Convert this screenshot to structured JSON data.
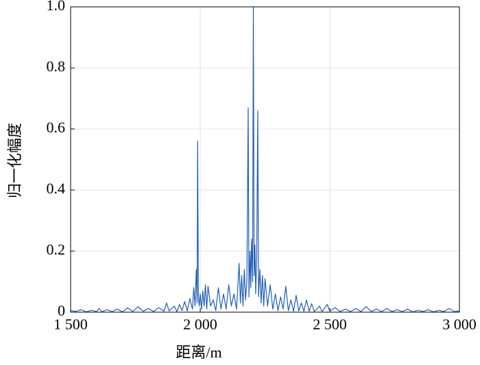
{
  "chart_data": {
    "type": "line",
    "xlabel": "距离/m",
    "ylabel": "归一化幅度",
    "color": "#1f5cb5",
    "grid": true,
    "xlim": [
      1500,
      3000
    ],
    "xticks": [
      {
        "value": 1500,
        "label": "1 500"
      },
      {
        "value": 2000,
        "label": "2 000"
      },
      {
        "value": 2500,
        "label": "2 500"
      },
      {
        "value": 3000,
        "label": "3 000"
      }
    ],
    "ylim": [
      0,
      1.0
    ],
    "yticks": [
      0,
      0.2,
      0.4,
      0.6,
      0.8,
      {
        "value": 1.0,
        "label": "1.0"
      }
    ],
    "x": [
      1500,
      1520,
      1540,
      1560,
      1580,
      1600,
      1610,
      1620,
      1640,
      1660,
      1680,
      1700,
      1720,
      1740,
      1760,
      1780,
      1800,
      1820,
      1840,
      1860,
      1870,
      1880,
      1900,
      1910,
      1920,
      1930,
      1940,
      1950,
      1960,
      1970,
      1975,
      1980,
      1985,
      1988,
      1990,
      1993,
      1996,
      2000,
      2005,
      2010,
      2015,
      2020,
      2025,
      2030,
      2040,
      2050,
      2060,
      2070,
      2080,
      2090,
      2100,
      2110,
      2120,
      2130,
      2140,
      2150,
      2155,
      2160,
      2165,
      2170,
      2175,
      2180,
      2185,
      2188,
      2192,
      2195,
      2198,
      2202,
      2205,
      2208,
      2211,
      2214,
      2218,
      2222,
      2225,
      2230,
      2235,
      2240,
      2245,
      2250,
      2260,
      2270,
      2280,
      2290,
      2300,
      2310,
      2320,
      2330,
      2340,
      2350,
      2360,
      2370,
      2380,
      2390,
      2400,
      2410,
      2420,
      2430,
      2440,
      2460,
      2470,
      2490,
      2500,
      2520,
      2540,
      2560,
      2580,
      2600,
      2620,
      2640,
      2660,
      2680,
      2700,
      2720,
      2740,
      2760,
      2780,
      2800,
      2820,
      2840,
      2860,
      2880,
      2900,
      2920,
      2940,
      2960,
      2980,
      3000
    ],
    "values": [
      0.005,
      0.002,
      0.008,
      0.001,
      0.006,
      0.002,
      0.012,
      0.001,
      0.008,
      0.002,
      0.01,
      0.001,
      0.014,
      0.002,
      0.018,
      0.003,
      0.012,
      0.002,
      0.015,
      0.003,
      0.03,
      0.004,
      0.02,
      0.002,
      0.025,
      0.005,
      0.035,
      0.004,
      0.045,
      0.01,
      0.08,
      0.02,
      0.14,
      0.03,
      0.56,
      0.05,
      0.02,
      0.06,
      0.01,
      0.07,
      0.02,
      0.09,
      0.01,
      0.085,
      0.02,
      0.04,
      0.005,
      0.08,
      0.01,
      0.06,
      0.01,
      0.09,
      0.02,
      0.06,
      0.01,
      0.16,
      0.03,
      0.12,
      0.02,
      0.14,
      0.04,
      0.1,
      0.67,
      0.05,
      0.2,
      0.08,
      0.24,
      0.1,
      1.0,
      0.12,
      0.22,
      0.06,
      0.18,
      0.66,
      0.05,
      0.14,
      0.03,
      0.12,
      0.02,
      0.11,
      0.02,
      0.09,
      0.01,
      0.06,
      0.005,
      0.05,
      0.01,
      0.085,
      0.005,
      0.04,
      0.003,
      0.055,
      0.004,
      0.03,
      0.003,
      0.04,
      0.003,
      0.028,
      0.002,
      0.02,
      0.002,
      0.025,
      0.003,
      0.015,
      0.002,
      0.01,
      0.002,
      0.012,
      0.002,
      0.018,
      0.002,
      0.01,
      0.002,
      0.012,
      0.002,
      0.008,
      0.002,
      0.01,
      0.001,
      0.006,
      0.002,
      0.008,
      0.001,
      0.006,
      0.002,
      0.012,
      0.002,
      0.004
    ]
  }
}
